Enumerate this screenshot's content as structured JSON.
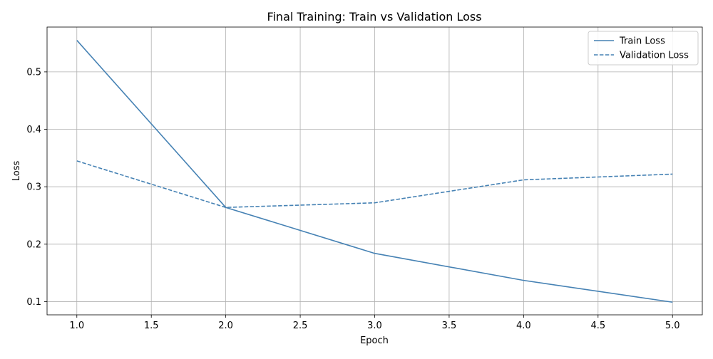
{
  "chart_data": {
    "type": "line",
    "title": "Final Training: Train vs Validation Loss",
    "xlabel": "Epoch",
    "ylabel": "Loss",
    "x": [
      1,
      2,
      3,
      4,
      5
    ],
    "xlim": [
      0.8,
      5.2
    ],
    "ylim": [
      0.077,
      0.578
    ],
    "xticks": [
      1.0,
      1.5,
      2.0,
      2.5,
      3.0,
      3.5,
      4.0,
      4.5,
      5.0
    ],
    "xtick_labels": [
      "1.0",
      "1.5",
      "2.0",
      "2.5",
      "3.0",
      "3.5",
      "4.0",
      "4.5",
      "5.0"
    ],
    "yticks": [
      0.1,
      0.2,
      0.3,
      0.4,
      0.5
    ],
    "ytick_labels": [
      "0.1",
      "0.2",
      "0.3",
      "0.4",
      "0.5"
    ],
    "grid": true,
    "legend_position": "top-right",
    "series": [
      {
        "name": "Train Loss",
        "values": [
          0.555,
          0.264,
          0.184,
          0.137,
          0.099
        ],
        "style": "solid",
        "color": "#4682b4"
      },
      {
        "name": "Validation Loss",
        "values": [
          0.345,
          0.264,
          0.272,
          0.312,
          0.322
        ],
        "style": "dashed",
        "color": "#4682b4"
      }
    ]
  }
}
